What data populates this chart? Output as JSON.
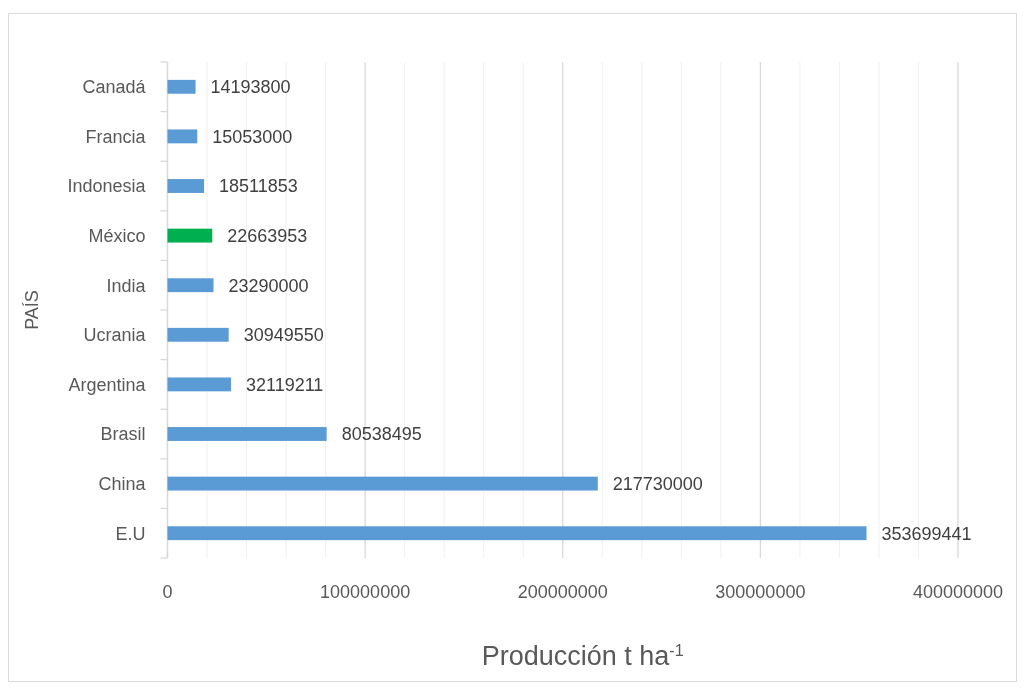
{
  "chart_data": {
    "type": "bar",
    "orientation": "horizontal",
    "categories": [
      "Canadá",
      "Francia",
      "Indonesia",
      "México",
      "India",
      "Ucrania",
      "Argentina",
      "Brasil",
      "China",
      "E.U"
    ],
    "values": [
      14193800,
      15053000,
      18511853,
      22663953,
      23290000,
      30949550,
      32119211,
      80538495,
      217730000,
      353699441
    ],
    "colors": [
      "#5b9bd5",
      "#5b9bd5",
      "#5b9bd5",
      "#00b050",
      "#5b9bd5",
      "#5b9bd5",
      "#5b9bd5",
      "#5b9bd5",
      "#5b9bd5",
      "#5b9bd5"
    ],
    "xlabel": "Producción t ha$^{-1}$",
    "ylabel": "PAÍS",
    "xlim": [
      0,
      400000000
    ],
    "xticks": [
      0,
      {
        "value": 20000000,
        "label": null
      },
      {
        "value": 40000000,
        "label": null
      },
      {
        "value": 60000000,
        "label": null
      },
      {
        "value": 80000000,
        "label": null
      },
      100000000,
      {
        "value": 120000000,
        "label": null
      },
      {
        "value": 140000000,
        "label": null
      },
      {
        "value": 160000000,
        "label": null
      },
      {
        "value": 180000000,
        "label": null
      },
      200000000,
      {
        "value": 220000000,
        "label": null
      },
      {
        "value": 240000000,
        "label": null
      },
      {
        "value": 260000000,
        "label": null
      },
      {
        "value": 280000000,
        "label": null
      },
      300000000,
      {
        "value": 320000000,
        "label": null
      },
      {
        "value": 340000000,
        "label": null
      },
      {
        "value": 360000000,
        "label": null
      },
      {
        "value": 380000000,
        "label": null
      },
      400000000
    ],
    "grid": "x",
    "data_labels": true
  }
}
